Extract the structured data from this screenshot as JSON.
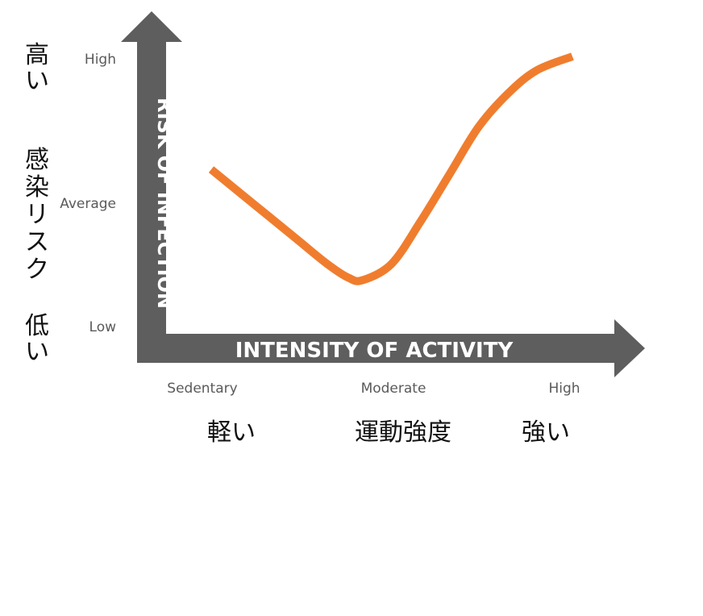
{
  "chart_data": {
    "type": "line",
    "title": "",
    "xlabel": "INTENSITY OF ACTIVITY",
    "ylabel": "RISK OF INFECTION",
    "x_ticks": [
      "Sedentary",
      "Moderate",
      "High"
    ],
    "y_ticks": [
      "Low",
      "Average",
      "High"
    ],
    "xlim": [
      0,
      1
    ],
    "ylim": [
      0,
      1
    ],
    "grid": false,
    "series": [
      {
        "color": "#f07d2e",
        "x": [
          0.0,
          0.08,
          0.16,
          0.24,
          0.32,
          0.38,
          0.42,
          0.5,
          0.58,
          0.66,
          0.74,
          0.82,
          0.9,
          1.0
        ],
        "y": [
          0.52,
          0.42,
          0.32,
          0.22,
          0.12,
          0.06,
          0.05,
          0.12,
          0.3,
          0.5,
          0.7,
          0.84,
          0.94,
          1.0
        ]
      }
    ],
    "jp_labels": {
      "y_high": "高い",
      "y_title": "感染リスク",
      "y_low": "低い",
      "x_low": "軽い",
      "x_title": "運動強度",
      "x_high": "強い"
    }
  },
  "colors": {
    "axis": "#5e5e5e",
    "curve": "#f07d2e",
    "tick_text": "#5a5a5a"
  }
}
